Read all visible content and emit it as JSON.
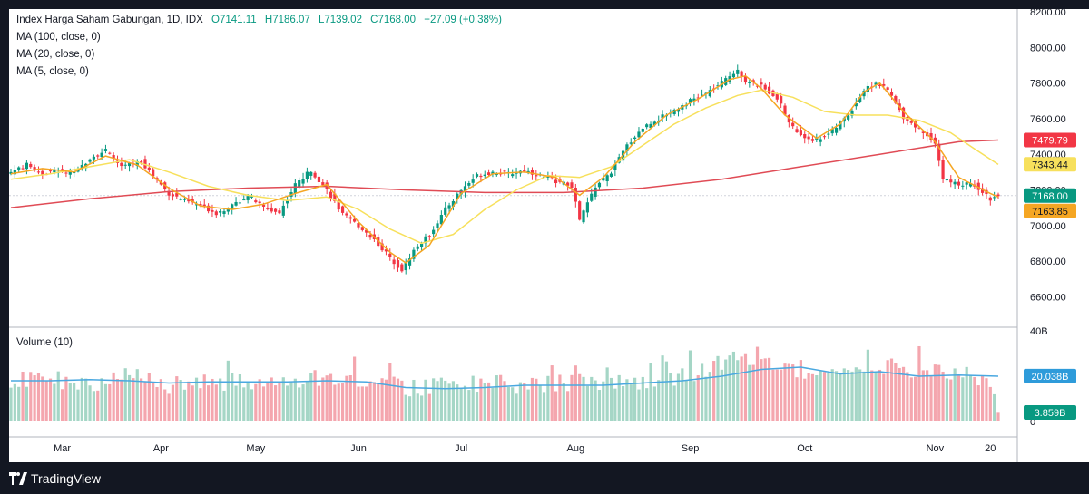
{
  "legend": {
    "title": "Index Harga Saham Gabungan, 1D, IDX",
    "open": "O7141.11",
    "high": "H7186.07",
    "low": "L7139.02",
    "close": "C7168.00",
    "change": "+27.09 (+0.38%)",
    "ma100": "MA (100, close, 0)",
    "ma20": "MA (20, close, 0)",
    "ma5": "MA (5, close, 0)"
  },
  "volume_legend": "Volume (10)",
  "branding": {
    "name": "TradingView"
  },
  "colors": {
    "up": "#089981",
    "down": "#F23645",
    "up_volume": "#A5D6C6",
    "down_volume": "#F4A6AE",
    "ma100": "#E04B55",
    "ma20": "#F7E05C",
    "ma5": "#F5A623",
    "volume_ma": "#4AA8E0"
  },
  "chart_data": [
    {
      "type": "candlestick",
      "name": "Index Harga Saham Gabungan, 1D, IDX",
      "ylim": [
        6500,
        8200
      ],
      "y_ticks": [
        "8200.00",
        "8000.00",
        "7800.00",
        "7600.00",
        "7400.00",
        "7200.00",
        "7000.00",
        "6800.00",
        "6600.00"
      ],
      "x_ticks": [
        {
          "label": "Mar",
          "index": 13
        },
        {
          "label": "Apr",
          "index": 38
        },
        {
          "label": "May",
          "index": 62
        },
        {
          "label": "Jun",
          "index": 88
        },
        {
          "label": "Jul",
          "index": 114
        },
        {
          "label": "Aug",
          "index": 143
        },
        {
          "label": "Sep",
          "index": 172
        },
        {
          "label": "Oct",
          "index": 201
        },
        {
          "label": "Nov",
          "index": 234
        },
        {
          "label": "20",
          "index": 248
        }
      ],
      "close_path": [
        [
          0,
          7300
        ],
        [
          4,
          7340
        ],
        [
          8,
          7290
        ],
        [
          12,
          7310
        ],
        [
          16,
          7290
        ],
        [
          20,
          7380
        ],
        [
          24,
          7420
        ],
        [
          28,
          7330
        ],
        [
          33,
          7360
        ],
        [
          36,
          7280
        ],
        [
          40,
          7180
        ],
        [
          44,
          7140
        ],
        [
          48,
          7110
        ],
        [
          52,
          7070
        ],
        [
          56,
          7110
        ],
        [
          60,
          7170
        ],
        [
          64,
          7100
        ],
        [
          68,
          7070
        ],
        [
          72,
          7230
        ],
        [
          76,
          7310
        ],
        [
          80,
          7200
        ],
        [
          84,
          7060
        ],
        [
          88,
          7000
        ],
        [
          92,
          6920
        ],
        [
          96,
          6820
        ],
        [
          99,
          6750
        ],
        [
          102,
          6860
        ],
        [
          106,
          6950
        ],
        [
          110,
          7090
        ],
        [
          114,
          7200
        ],
        [
          118,
          7280
        ],
        [
          122,
          7300
        ],
        [
          126,
          7290
        ],
        [
          130,
          7310
        ],
        [
          134,
          7280
        ],
        [
          138,
          7250
        ],
        [
          142,
          7220
        ],
        [
          144,
          7030
        ],
        [
          148,
          7220
        ],
        [
          152,
          7300
        ],
        [
          156,
          7450
        ],
        [
          160,
          7550
        ],
        [
          164,
          7600
        ],
        [
          168,
          7650
        ],
        [
          172,
          7700
        ],
        [
          176,
          7740
        ],
        [
          180,
          7800
        ],
        [
          184,
          7880
        ],
        [
          186,
          7810
        ],
        [
          190,
          7780
        ],
        [
          194,
          7720
        ],
        [
          197,
          7580
        ],
        [
          200,
          7500
        ],
        [
          204,
          7480
        ],
        [
          208,
          7530
        ],
        [
          212,
          7620
        ],
        [
          216,
          7760
        ],
        [
          219,
          7800
        ],
        [
          222,
          7760
        ],
        [
          226,
          7610
        ],
        [
          230,
          7540
        ],
        [
          234,
          7470
        ],
        [
          236,
          7260
        ],
        [
          240,
          7230
        ],
        [
          244,
          7230
        ],
        [
          248,
          7150
        ],
        [
          250,
          7168
        ]
      ],
      "ma5_path": [
        [
          0,
          7290
        ],
        [
          8,
          7320
        ],
        [
          16,
          7300
        ],
        [
          24,
          7390
        ],
        [
          32,
          7340
        ],
        [
          40,
          7210
        ],
        [
          48,
          7110
        ],
        [
          56,
          7090
        ],
        [
          64,
          7120
        ],
        [
          72,
          7180
        ],
        [
          80,
          7230
        ],
        [
          88,
          7020
        ],
        [
          96,
          6850
        ],
        [
          100,
          6790
        ],
        [
          106,
          6890
        ],
        [
          114,
          7180
        ],
        [
          122,
          7290
        ],
        [
          130,
          7300
        ],
        [
          138,
          7270
        ],
        [
          144,
          7170
        ],
        [
          150,
          7270
        ],
        [
          158,
          7470
        ],
        [
          166,
          7620
        ],
        [
          174,
          7710
        ],
        [
          182,
          7820
        ],
        [
          186,
          7840
        ],
        [
          190,
          7770
        ],
        [
          196,
          7620
        ],
        [
          204,
          7490
        ],
        [
          210,
          7570
        ],
        [
          216,
          7750
        ],
        [
          220,
          7800
        ],
        [
          226,
          7640
        ],
        [
          234,
          7470
        ],
        [
          240,
          7270
        ],
        [
          248,
          7180
        ],
        [
          250,
          7160
        ]
      ],
      "ma20_path": [
        [
          0,
          7260
        ],
        [
          10,
          7290
        ],
        [
          20,
          7330
        ],
        [
          30,
          7370
        ],
        [
          40,
          7300
        ],
        [
          50,
          7220
        ],
        [
          60,
          7170
        ],
        [
          70,
          7140
        ],
        [
          80,
          7160
        ],
        [
          88,
          7090
        ],
        [
          96,
          6980
        ],
        [
          104,
          6900
        ],
        [
          112,
          6950
        ],
        [
          120,
          7090
        ],
        [
          128,
          7200
        ],
        [
          136,
          7280
        ],
        [
          144,
          7270
        ],
        [
          152,
          7330
        ],
        [
          160,
          7450
        ],
        [
          168,
          7570
        ],
        [
          176,
          7660
        ],
        [
          184,
          7730
        ],
        [
          190,
          7760
        ],
        [
          198,
          7720
        ],
        [
          206,
          7640
        ],
        [
          214,
          7620
        ],
        [
          222,
          7620
        ],
        [
          230,
          7590
        ],
        [
          238,
          7520
        ],
        [
          244,
          7430
        ],
        [
          250,
          7343
        ]
      ],
      "ma100_path": [
        [
          0,
          7100
        ],
        [
          20,
          7150
        ],
        [
          40,
          7190
        ],
        [
          60,
          7210
        ],
        [
          80,
          7220
        ],
        [
          100,
          7200
        ],
        [
          120,
          7185
        ],
        [
          140,
          7185
        ],
        [
          160,
          7210
        ],
        [
          180,
          7260
        ],
        [
          200,
          7330
        ],
        [
          220,
          7400
        ],
        [
          240,
          7470
        ],
        [
          250,
          7480
        ]
      ],
      "price_labels": [
        {
          "label": "7479.79",
          "value": 7479.79,
          "color": "#F23645",
          "text_color": "#ffffff"
        },
        {
          "label": "7343.44",
          "value": 7343.44,
          "color": "#F7E05C",
          "text_color": "#131722"
        },
        {
          "label": "7168.00",
          "value": 7168.0,
          "color": "#089981",
          "text_color": "#ffffff"
        },
        {
          "label": "7163.85",
          "value": 7163.85,
          "color": "#F5A623",
          "text_color": "#131722"
        }
      ]
    },
    {
      "type": "bar",
      "name": "Volume (10)",
      "unit": "B",
      "ylim": [
        0,
        40
      ],
      "y_ticks": [
        "40B",
        "20B",
        "0"
      ],
      "volume_path": [
        [
          0,
          17
        ],
        [
          10,
          19
        ],
        [
          20,
          16
        ],
        [
          30,
          20
        ],
        [
          40,
          16
        ],
        [
          50,
          18
        ],
        [
          60,
          17
        ],
        [
          70,
          18
        ],
        [
          80,
          19
        ],
        [
          90,
          18
        ],
        [
          100,
          15
        ],
        [
          110,
          16
        ],
        [
          120,
          17
        ],
        [
          130,
          16
        ],
        [
          140,
          17
        ],
        [
          150,
          18
        ],
        [
          160,
          17
        ],
        [
          170,
          20
        ],
        [
          180,
          26
        ],
        [
          186,
          29
        ],
        [
          190,
          26
        ],
        [
          200,
          23
        ],
        [
          210,
          22
        ],
        [
          220,
          25
        ],
        [
          230,
          23
        ],
        [
          240,
          21
        ],
        [
          248,
          19
        ],
        [
          250,
          4
        ]
      ],
      "volume_ma_path": [
        [
          0,
          18
        ],
        [
          10,
          18
        ],
        [
          20,
          18.5
        ],
        [
          30,
          18
        ],
        [
          40,
          17
        ],
        [
          50,
          17.5
        ],
        [
          60,
          17.5
        ],
        [
          70,
          17.5
        ],
        [
          80,
          18
        ],
        [
          90,
          17.5
        ],
        [
          100,
          15
        ],
        [
          110,
          14.5
        ],
        [
          120,
          15
        ],
        [
          130,
          16
        ],
        [
          140,
          16
        ],
        [
          150,
          16
        ],
        [
          160,
          17
        ],
        [
          170,
          18
        ],
        [
          180,
          20
        ],
        [
          190,
          23
        ],
        [
          200,
          24
        ],
        [
          210,
          21
        ],
        [
          220,
          22
        ],
        [
          230,
          20
        ],
        [
          240,
          20.5
        ],
        [
          250,
          20
        ]
      ],
      "value_labels": [
        {
          "label": "20.038B",
          "value": 20.038,
          "color": "#2E9BDA",
          "text_color": "#ffffff"
        },
        {
          "label": "3.859B",
          "value": 3.859,
          "color": "#089981",
          "text_color": "#ffffff"
        }
      ]
    }
  ]
}
